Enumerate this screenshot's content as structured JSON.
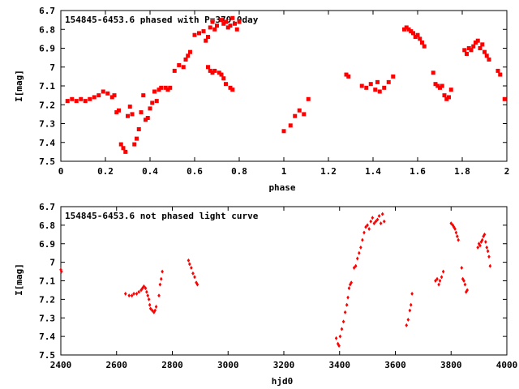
{
  "colors": {
    "marker": "#ff0000",
    "axis": "#000000",
    "background": "#ffffff"
  },
  "chart_data": [
    {
      "type": "scatter",
      "title": "154845-6453.6 phased with P=370.0day",
      "xlabel": "phase",
      "ylabel": "I[mag]",
      "xlim": [
        0,
        2
      ],
      "ylim": [
        6.7,
        7.5
      ],
      "y_inverted": true,
      "grid": false,
      "legend": "none",
      "xticks": [
        "0",
        "0.2",
        "0.4",
        "0.6",
        "0.8",
        "1",
        "1.2",
        "1.4",
        "1.6",
        "1.8",
        "2"
      ],
      "yticks": [
        "6.7",
        "6.8",
        "6.9",
        "7",
        "7.1",
        "7.2",
        "7.3",
        "7.4",
        "7.5"
      ],
      "points": [
        [
          0.03,
          7.18
        ],
        [
          0.05,
          7.17
        ],
        [
          0.07,
          7.18
        ],
        [
          0.09,
          7.17
        ],
        [
          0.11,
          7.18
        ],
        [
          0.13,
          7.17
        ],
        [
          0.15,
          7.16
        ],
        [
          0.17,
          7.15
        ],
        [
          0.19,
          7.13
        ],
        [
          0.21,
          7.14
        ],
        [
          0.23,
          7.16
        ],
        [
          0.24,
          7.15
        ],
        [
          0.25,
          7.24
        ],
        [
          0.26,
          7.23
        ],
        [
          0.27,
          7.41
        ],
        [
          0.28,
          7.43
        ],
        [
          0.29,
          7.45
        ],
        [
          0.3,
          7.26
        ],
        [
          0.31,
          7.21
        ],
        [
          0.32,
          7.25
        ],
        [
          0.33,
          7.41
        ],
        [
          0.34,
          7.38
        ],
        [
          0.35,
          7.33
        ],
        [
          0.36,
          7.24
        ],
        [
          0.37,
          7.15
        ],
        [
          0.38,
          7.28
        ],
        [
          0.39,
          7.27
        ],
        [
          0.4,
          7.22
        ],
        [
          0.41,
          7.19
        ],
        [
          0.42,
          7.13
        ],
        [
          0.43,
          7.18
        ],
        [
          0.44,
          7.12
        ],
        [
          0.45,
          7.11
        ],
        [
          0.47,
          7.11
        ],
        [
          0.48,
          7.12
        ],
        [
          0.49,
          7.11
        ],
        [
          0.51,
          7.02
        ],
        [
          0.53,
          6.99
        ],
        [
          0.55,
          7.0
        ],
        [
          0.56,
          6.96
        ],
        [
          0.57,
          6.94
        ],
        [
          0.58,
          6.92
        ],
        [
          0.6,
          6.83
        ],
        [
          0.62,
          6.82
        ],
        [
          0.64,
          6.81
        ],
        [
          0.65,
          6.86
        ],
        [
          0.66,
          6.84
        ],
        [
          0.67,
          6.79
        ],
        [
          0.68,
          6.76
        ],
        [
          0.69,
          6.8
        ],
        [
          0.7,
          6.78
        ],
        [
          0.72,
          6.75
        ],
        [
          0.73,
          6.77
        ],
        [
          0.74,
          6.76
        ],
        [
          0.75,
          6.79
        ],
        [
          0.76,
          6.78
        ],
        [
          0.77,
          6.74
        ],
        [
          0.78,
          6.77
        ],
        [
          0.79,
          6.8
        ],
        [
          0.8,
          6.76
        ],
        [
          0.66,
          7.0
        ],
        [
          0.67,
          7.02
        ],
        [
          0.68,
          7.03
        ],
        [
          0.69,
          7.02
        ],
        [
          0.71,
          7.03
        ],
        [
          0.72,
          7.04
        ],
        [
          0.73,
          7.06
        ],
        [
          0.74,
          7.09
        ],
        [
          0.76,
          7.11
        ],
        [
          0.77,
          7.12
        ],
        [
          1.0,
          7.34
        ],
        [
          1.03,
          7.31
        ],
        [
          1.05,
          7.26
        ],
        [
          1.07,
          7.23
        ],
        [
          1.09,
          7.25
        ],
        [
          1.11,
          7.17
        ],
        [
          1.28,
          7.04
        ],
        [
          1.29,
          7.05
        ],
        [
          1.35,
          7.1
        ],
        [
          1.37,
          7.11
        ],
        [
          1.39,
          7.09
        ],
        [
          1.41,
          7.12
        ],
        [
          1.42,
          7.08
        ],
        [
          1.43,
          7.13
        ],
        [
          1.45,
          7.11
        ],
        [
          1.47,
          7.08
        ],
        [
          1.49,
          7.05
        ],
        [
          1.54,
          6.8
        ],
        [
          1.55,
          6.79
        ],
        [
          1.56,
          6.8
        ],
        [
          1.57,
          6.81
        ],
        [
          1.58,
          6.82
        ],
        [
          1.59,
          6.84
        ],
        [
          1.6,
          6.83
        ],
        [
          1.61,
          6.85
        ],
        [
          1.62,
          6.87
        ],
        [
          1.63,
          6.89
        ],
        [
          1.67,
          7.03
        ],
        [
          1.68,
          7.09
        ],
        [
          1.69,
          7.1
        ],
        [
          1.7,
          7.11
        ],
        [
          1.71,
          7.1
        ],
        [
          1.72,
          7.15
        ],
        [
          1.73,
          7.17
        ],
        [
          1.74,
          7.16
        ],
        [
          1.75,
          7.12
        ],
        [
          1.81,
          6.91
        ],
        [
          1.82,
          6.93
        ],
        [
          1.83,
          6.9
        ],
        [
          1.84,
          6.91
        ],
        [
          1.85,
          6.89
        ],
        [
          1.86,
          6.87
        ],
        [
          1.87,
          6.86
        ],
        [
          1.88,
          6.9
        ],
        [
          1.89,
          6.88
        ],
        [
          1.9,
          6.92
        ],
        [
          1.91,
          6.94
        ],
        [
          1.92,
          6.96
        ],
        [
          1.96,
          7.02
        ],
        [
          1.97,
          7.04
        ],
        [
          1.99,
          7.17
        ]
      ]
    },
    {
      "type": "scatter",
      "title": "154845-6453.6 not phased light curve",
      "xlabel": "hjd0",
      "ylabel": "I[mag]",
      "xlim": [
        2400,
        4000
      ],
      "ylim": [
        6.7,
        7.5
      ],
      "y_inverted": true,
      "grid": false,
      "legend": "none",
      "xticks": [
        "2400",
        "2600",
        "2800",
        "3000",
        "3200",
        "3400",
        "3600",
        "3800",
        "4000"
      ],
      "yticks": [
        "6.7",
        "6.8",
        "6.9",
        "7",
        "7.1",
        "7.2",
        "7.3",
        "7.4",
        "7.5"
      ],
      "points": [
        [
          2400,
          7.04
        ],
        [
          2402,
          7.05
        ],
        [
          2632,
          7.17
        ],
        [
          2645,
          7.18
        ],
        [
          2655,
          7.18
        ],
        [
          2662,
          7.17
        ],
        [
          2672,
          7.17
        ],
        [
          2680,
          7.16
        ],
        [
          2688,
          7.15
        ],
        [
          2693,
          7.14
        ],
        [
          2698,
          7.13
        ],
        [
          2704,
          7.14
        ],
        [
          2708,
          7.16
        ],
        [
          2712,
          7.18
        ],
        [
          2716,
          7.2
        ],
        [
          2719,
          7.23
        ],
        [
          2722,
          7.25
        ],
        [
          2728,
          7.26
        ],
        [
          2734,
          7.27
        ],
        [
          2738,
          7.26
        ],
        [
          2742,
          7.24
        ],
        [
          2752,
          7.18
        ],
        [
          2756,
          7.12
        ],
        [
          2760,
          7.09
        ],
        [
          2764,
          7.05
        ],
        [
          2858,
          6.99
        ],
        [
          2862,
          7.01
        ],
        [
          2868,
          7.03
        ],
        [
          2874,
          7.06
        ],
        [
          2880,
          7.08
        ],
        [
          2886,
          7.11
        ],
        [
          2890,
          7.12
        ],
        [
          3388,
          7.41
        ],
        [
          3394,
          7.44
        ],
        [
          3398,
          7.45
        ],
        [
          3402,
          7.4
        ],
        [
          3408,
          7.36
        ],
        [
          3414,
          7.32
        ],
        [
          3420,
          7.27
        ],
        [
          3426,
          7.23
        ],
        [
          3430,
          7.19
        ],
        [
          3434,
          7.14
        ],
        [
          3438,
          7.12
        ],
        [
          3442,
          7.11
        ],
        [
          3452,
          7.03
        ],
        [
          3458,
          7.02
        ],
        [
          3464,
          6.98
        ],
        [
          3470,
          6.95
        ],
        [
          3476,
          6.92
        ],
        [
          3482,
          6.88
        ],
        [
          3488,
          6.84
        ],
        [
          3494,
          6.81
        ],
        [
          3500,
          6.8
        ],
        [
          3506,
          6.82
        ],
        [
          3512,
          6.78
        ],
        [
          3518,
          6.76
        ],
        [
          3524,
          6.79
        ],
        [
          3530,
          6.78
        ],
        [
          3536,
          6.77
        ],
        [
          3542,
          6.75
        ],
        [
          3548,
          6.79
        ],
        [
          3554,
          6.74
        ],
        [
          3560,
          6.78
        ],
        [
          3640,
          7.34
        ],
        [
          3646,
          7.31
        ],
        [
          3652,
          7.26
        ],
        [
          3656,
          7.23
        ],
        [
          3660,
          7.17
        ],
        [
          3744,
          7.1
        ],
        [
          3750,
          7.09
        ],
        [
          3756,
          7.12
        ],
        [
          3760,
          7.1
        ],
        [
          3766,
          7.08
        ],
        [
          3772,
          7.05
        ],
        [
          3800,
          6.79
        ],
        [
          3806,
          6.8
        ],
        [
          3810,
          6.81
        ],
        [
          3814,
          6.82
        ],
        [
          3818,
          6.84
        ],
        [
          3822,
          6.86
        ],
        [
          3826,
          6.88
        ],
        [
          3838,
          7.03
        ],
        [
          3842,
          7.09
        ],
        [
          3846,
          7.1
        ],
        [
          3850,
          7.12
        ],
        [
          3854,
          7.16
        ],
        [
          3858,
          7.15
        ],
        [
          3896,
          6.92
        ],
        [
          3900,
          6.9
        ],
        [
          3904,
          6.91
        ],
        [
          3908,
          6.89
        ],
        [
          3912,
          6.88
        ],
        [
          3916,
          6.86
        ],
        [
          3920,
          6.85
        ],
        [
          3924,
          6.89
        ],
        [
          3928,
          6.92
        ],
        [
          3932,
          6.94
        ],
        [
          3936,
          6.97
        ],
        [
          3940,
          7.02
        ]
      ]
    }
  ]
}
